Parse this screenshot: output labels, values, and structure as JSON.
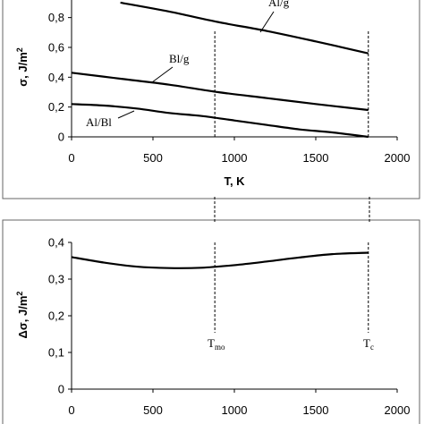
{
  "chart_data": [
    {
      "type": "line",
      "xlabel": "T, K",
      "ylabel": "σ, J/m²",
      "xlim": [
        0,
        2000
      ],
      "ylim": [
        0,
        0.9
      ],
      "xticks": [
        "0",
        "500",
        "1000",
        "1500",
        "2000"
      ],
      "yticks": [
        "0",
        "0,2",
        "0,4",
        "0,6",
        "0,8"
      ],
      "grid": false,
      "series": [
        {
          "name": "Al/g",
          "x": [
            300,
            600,
            900,
            1200,
            1500,
            1823
          ],
          "y": [
            0.9,
            0.84,
            0.77,
            0.71,
            0.64,
            0.56
          ]
        },
        {
          "name": "Bl/g",
          "x": [
            0,
            300,
            600,
            900,
            1200,
            1500,
            1823
          ],
          "y": [
            0.43,
            0.39,
            0.35,
            0.3,
            0.26,
            0.22,
            0.18
          ]
        },
        {
          "name": "Al/Bl",
          "x": [
            0,
            200,
            400,
            600,
            800,
            1000,
            1200,
            1400,
            1600,
            1823
          ],
          "y": [
            0.22,
            0.21,
            0.19,
            0.16,
            0.14,
            0.11,
            0.08,
            0.05,
            0.03,
            0.0
          ]
        }
      ],
      "vlines": [
        {
          "label": "T_mo",
          "x": 880
        },
        {
          "label": "T_c",
          "x": 1823
        }
      ]
    },
    {
      "type": "line",
      "xlabel": "",
      "ylabel": "Δσ, J/m²",
      "xlim": [
        0,
        2000
      ],
      "ylim": [
        0,
        0.4
      ],
      "xticks": [
        "0",
        "500",
        "1000",
        "1500",
        "2000"
      ],
      "yticks": [
        "0",
        "0,1",
        "0,2",
        "0,3",
        "0,4"
      ],
      "grid": false,
      "series": [
        {
          "name": "",
          "x": [
            0,
            200,
            400,
            600,
            800,
            1000,
            1200,
            1400,
            1600,
            1823
          ],
          "y": [
            0.36,
            0.345,
            0.334,
            0.33,
            0.331,
            0.338,
            0.348,
            0.359,
            0.368,
            0.372
          ]
        }
      ],
      "vlines": [
        {
          "label": "T_mo",
          "x": 880
        },
        {
          "label": "T_c",
          "x": 1823
        }
      ]
    }
  ],
  "labels": {
    "al_g": "Al/g",
    "bl_g": "Bl/g",
    "al_bl": "Al/Bl",
    "tmo_main": "T",
    "tmo_sub": "mo",
    "tc_main": "T",
    "tc_sub": "c"
  }
}
